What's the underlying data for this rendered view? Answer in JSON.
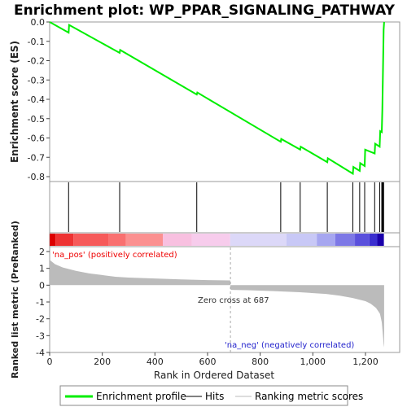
{
  "title": "Enrichment plot: WP_PPAR_SIGNALING_PATHWAY",
  "legend": {
    "items": [
      {
        "label": "Enrichment profile",
        "color": "#00ee00"
      },
      {
        "label": "Hits",
        "color": "#000000"
      },
      {
        "label": "Ranking metric scores",
        "color": "#bbbbbb"
      }
    ]
  },
  "chart_data": [
    {
      "type": "line",
      "name": "enrichment-profile",
      "ylabel": "Enrichment score (ES)",
      "ylim": [
        -0.8,
        0.0
      ],
      "xlim": [
        0,
        1330
      ],
      "yticks": [
        "0.0",
        "-0.1",
        "-0.2",
        "-0.3",
        "-0.4",
        "-0.5",
        "-0.6",
        "-0.7",
        "-0.8"
      ],
      "ytick_values": [
        0.0,
        -0.1,
        -0.2,
        -0.3,
        -0.4,
        -0.5,
        -0.6,
        -0.7,
        -0.8
      ],
      "color": "#00ee00",
      "x": [
        0,
        72,
        74,
        266,
        268,
        559,
        561,
        878,
        880,
        952,
        954,
        1055,
        1057,
        1152,
        1154,
        1178,
        1180,
        1197,
        1199,
        1235,
        1237,
        1254,
        1256,
        1262,
        1264,
        1269,
        1271
      ],
      "y": [
        0.0,
        -0.055,
        -0.015,
        -0.16,
        -0.145,
        -0.375,
        -0.365,
        -0.62,
        -0.605,
        -0.66,
        -0.645,
        -0.725,
        -0.705,
        -0.785,
        -0.75,
        -0.77,
        -0.73,
        -0.745,
        -0.66,
        -0.68,
        -0.63,
        -0.645,
        -0.565,
        -0.57,
        -0.455,
        -0.04,
        0.0
      ]
    },
    {
      "type": "scatter",
      "name": "hits",
      "x": [
        72,
        266,
        559,
        878,
        952,
        1055,
        1152,
        1178,
        1197,
        1235,
        1254,
        1262,
        1264,
        1266,
        1268,
        1269
      ]
    },
    {
      "type": "area",
      "name": "ranking-metric",
      "xlabel": "Rank in Ordered Dataset",
      "ylabel": "Ranked list metric (PreRanked)",
      "ylim": [
        -4,
        2
      ],
      "xlim": [
        0,
        1330
      ],
      "yticks": [
        "2",
        "1",
        "0",
        "-1",
        "-2",
        "-3",
        "-4"
      ],
      "ytick_values": [
        2,
        1,
        0,
        -1,
        -2,
        -3,
        -4
      ],
      "xticks": [
        "0",
        "200",
        "400",
        "600",
        "800",
        "1,000",
        "1,200"
      ],
      "xtick_values": [
        0,
        200,
        400,
        600,
        800,
        1000,
        1200
      ],
      "color": "#bbbbbb",
      "x": [
        0,
        20,
        50,
        100,
        150,
        200,
        250,
        300,
        400,
        500,
        600,
        686,
        688,
        750,
        850,
        950,
        1050,
        1100,
        1150,
        1200,
        1220,
        1240,
        1255,
        1262,
        1266,
        1269,
        1271
      ],
      "y": [
        1.5,
        1.25,
        1.05,
        0.85,
        0.7,
        0.6,
        0.5,
        0.45,
        0.4,
        0.34,
        0.3,
        0.28,
        -0.28,
        -0.3,
        -0.35,
        -0.42,
        -0.52,
        -0.62,
        -0.76,
        -0.95,
        -1.1,
        -1.35,
        -1.7,
        -2.2,
        -2.9,
        -3.5,
        -3.7
      ]
    }
  ],
  "annotations": {
    "pos_label": "'na_pos' (positively correlated)",
    "neg_label": "'na_neg' (negatively correlated)",
    "zero_cross": "Zero cross at 687",
    "zero_cross_rank": 687
  },
  "heatbar": {
    "total": 1270,
    "segments": [
      {
        "from": 0,
        "to": 22,
        "color": "#dd0000"
      },
      {
        "from": 22,
        "to": 90,
        "color": "#ee3333"
      },
      {
        "from": 90,
        "to": 225,
        "color": "#f65a5a"
      },
      {
        "from": 225,
        "to": 290,
        "color": "#f97070"
      },
      {
        "from": 290,
        "to": 430,
        "color": "#fb9090"
      },
      {
        "from": 430,
        "to": 540,
        "color": "#f8c0e0"
      },
      {
        "from": 540,
        "to": 686,
        "color": "#f7ccec"
      },
      {
        "from": 686,
        "to": 900,
        "color": "#dcd8f8"
      },
      {
        "from": 900,
        "to": 1015,
        "color": "#c8c8f6"
      },
      {
        "from": 1015,
        "to": 1085,
        "color": "#a6a6f0"
      },
      {
        "from": 1085,
        "to": 1160,
        "color": "#7d78e6"
      },
      {
        "from": 1160,
        "to": 1215,
        "color": "#5a50dc"
      },
      {
        "from": 1215,
        "to": 1245,
        "color": "#3a2ecf"
      },
      {
        "from": 1245,
        "to": 1270,
        "color": "#1a00aa"
      }
    ]
  }
}
